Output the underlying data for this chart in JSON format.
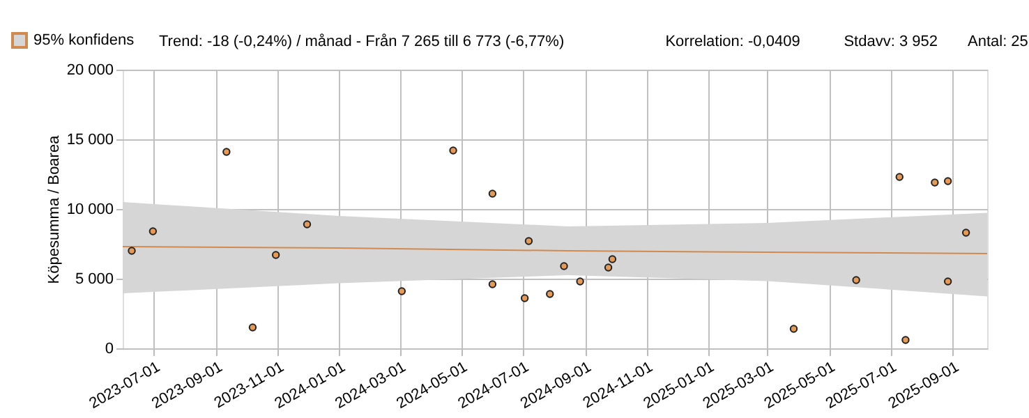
{
  "chart_data": {
    "type": "scatter",
    "ylabel": "Köpesumma / Boarea",
    "annotations": [
      "Trend: -18 (-0,24%) / månad  -  Från 7 265 till 6 773 (-6,77%)",
      "Korrelation: -0,0409",
      "Stdavv: 3 952",
      "Antal: 25"
    ],
    "series": [
      {
        "type": "line",
        "name": "95% konfidens",
        "color": "#d08a50",
        "x": [
          "2023-05-31",
          "2024-01-01",
          "2024-08-15",
          "2025-03-01",
          "2025-10-05"
        ],
        "marker": "none",
        "values": [
          7300,
          7200,
          7000,
          6900,
          6800
        ],
        "lower": [
          3950,
          4670,
          5250,
          4830,
          3730
        ],
        "upper": [
          10500,
          9500,
          8750,
          9000,
          9730
        ]
      },
      {
        "color": "#e69a55",
        "x": [
          "2023-06-09",
          "2023-06-30",
          "2023-09-11",
          "2023-10-07",
          "2023-10-30",
          "2023-11-30",
          "2024-03-03",
          "2024-04-23",
          "2024-06-01",
          "2024-06-01",
          "2024-07-03",
          "2024-07-07",
          "2024-07-28",
          "2024-08-11",
          "2024-08-27",
          "2024-09-24",
          "2024-09-28",
          "2025-03-27",
          "2025-05-28",
          "2025-07-10",
          "2025-07-16",
          "2025-08-14",
          "2025-08-27",
          "2025-08-27",
          "2025-09-14"
        ],
        "values": [
          7000,
          8400,
          14100,
          1500,
          6700,
          8900,
          4100,
          14200,
          11100,
          4600,
          3600,
          7700,
          3900,
          5900,
          4800,
          5800,
          6400,
          1400,
          4900,
          12300,
          600,
          11900,
          12000,
          4800,
          8300
        ]
      }
    ],
    "xlim": [
      "2023-05-31",
      "2025-10-05"
    ],
    "xticks": [
      "2023-07-01",
      "2023-09-01",
      "2023-11-01",
      "2024-01-01",
      "2024-03-01",
      "2024-05-01",
      "2024-07-01",
      "2024-09-01",
      "2024-11-01",
      "2025-01-01",
      "2025-03-01",
      "2025-05-01",
      "2025-07-01",
      "2025-09-01"
    ],
    "ylim": [
      0,
      20000
    ],
    "yticks": [
      0,
      {
        "value": 5000,
        "label": "5 000"
      },
      {
        "value": 10000,
        "label": "10 000"
      },
      {
        "value": 15000,
        "label": "15 000"
      },
      {
        "value": 20000,
        "label": "20 000"
      }
    ],
    "grid": true,
    "legend": "top left",
    "marker": "circle"
  }
}
